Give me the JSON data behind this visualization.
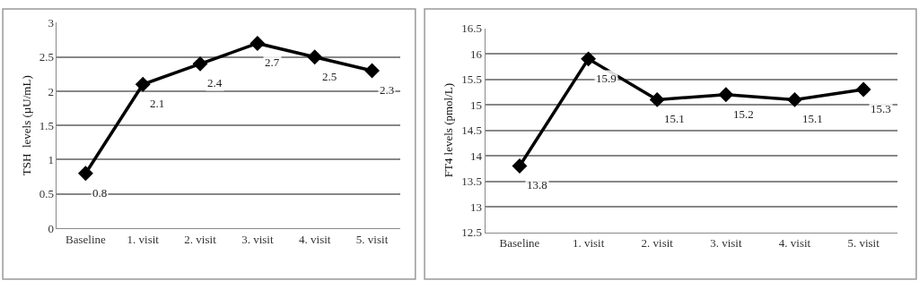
{
  "chart_data": [
    {
      "type": "line",
      "ylabel": "TSH  levels (µU/mL)",
      "categories": [
        "Baseline",
        "1. visit",
        "2. visit",
        "3. visit",
        "4. visit",
        "5. visit"
      ],
      "series": [
        {
          "color": "#000000",
          "values": [
            0.8,
            2.1,
            2.4,
            2.7,
            2.5,
            2.3
          ]
        }
      ],
      "ylim": [
        0,
        3
      ],
      "yticks": [
        0,
        0.5,
        1,
        1.5,
        2,
        2.5,
        3
      ],
      "grid": "y",
      "marker": "diamond",
      "line_style": "solid",
      "data_labels": true
    },
    {
      "type": "line",
      "ylabel": "FT4 levels (pmol/L)",
      "categories": [
        "Baseline",
        "1. visit",
        "2. visit",
        "3. visit",
        "4. visit",
        "5. visit"
      ],
      "series": [
        {
          "color": "#000000",
          "values": [
            13.8,
            15.9,
            15.1,
            15.2,
            15.1,
            15.3
          ]
        }
      ],
      "ylim": [
        12.5,
        16.5
      ],
      "yticks": [
        12.5,
        13,
        13.5,
        14,
        14.5,
        15,
        15.5,
        16,
        16.5
      ],
      "grid": "y",
      "marker": "diamond",
      "line_style": "solid",
      "data_labels": true
    }
  ]
}
